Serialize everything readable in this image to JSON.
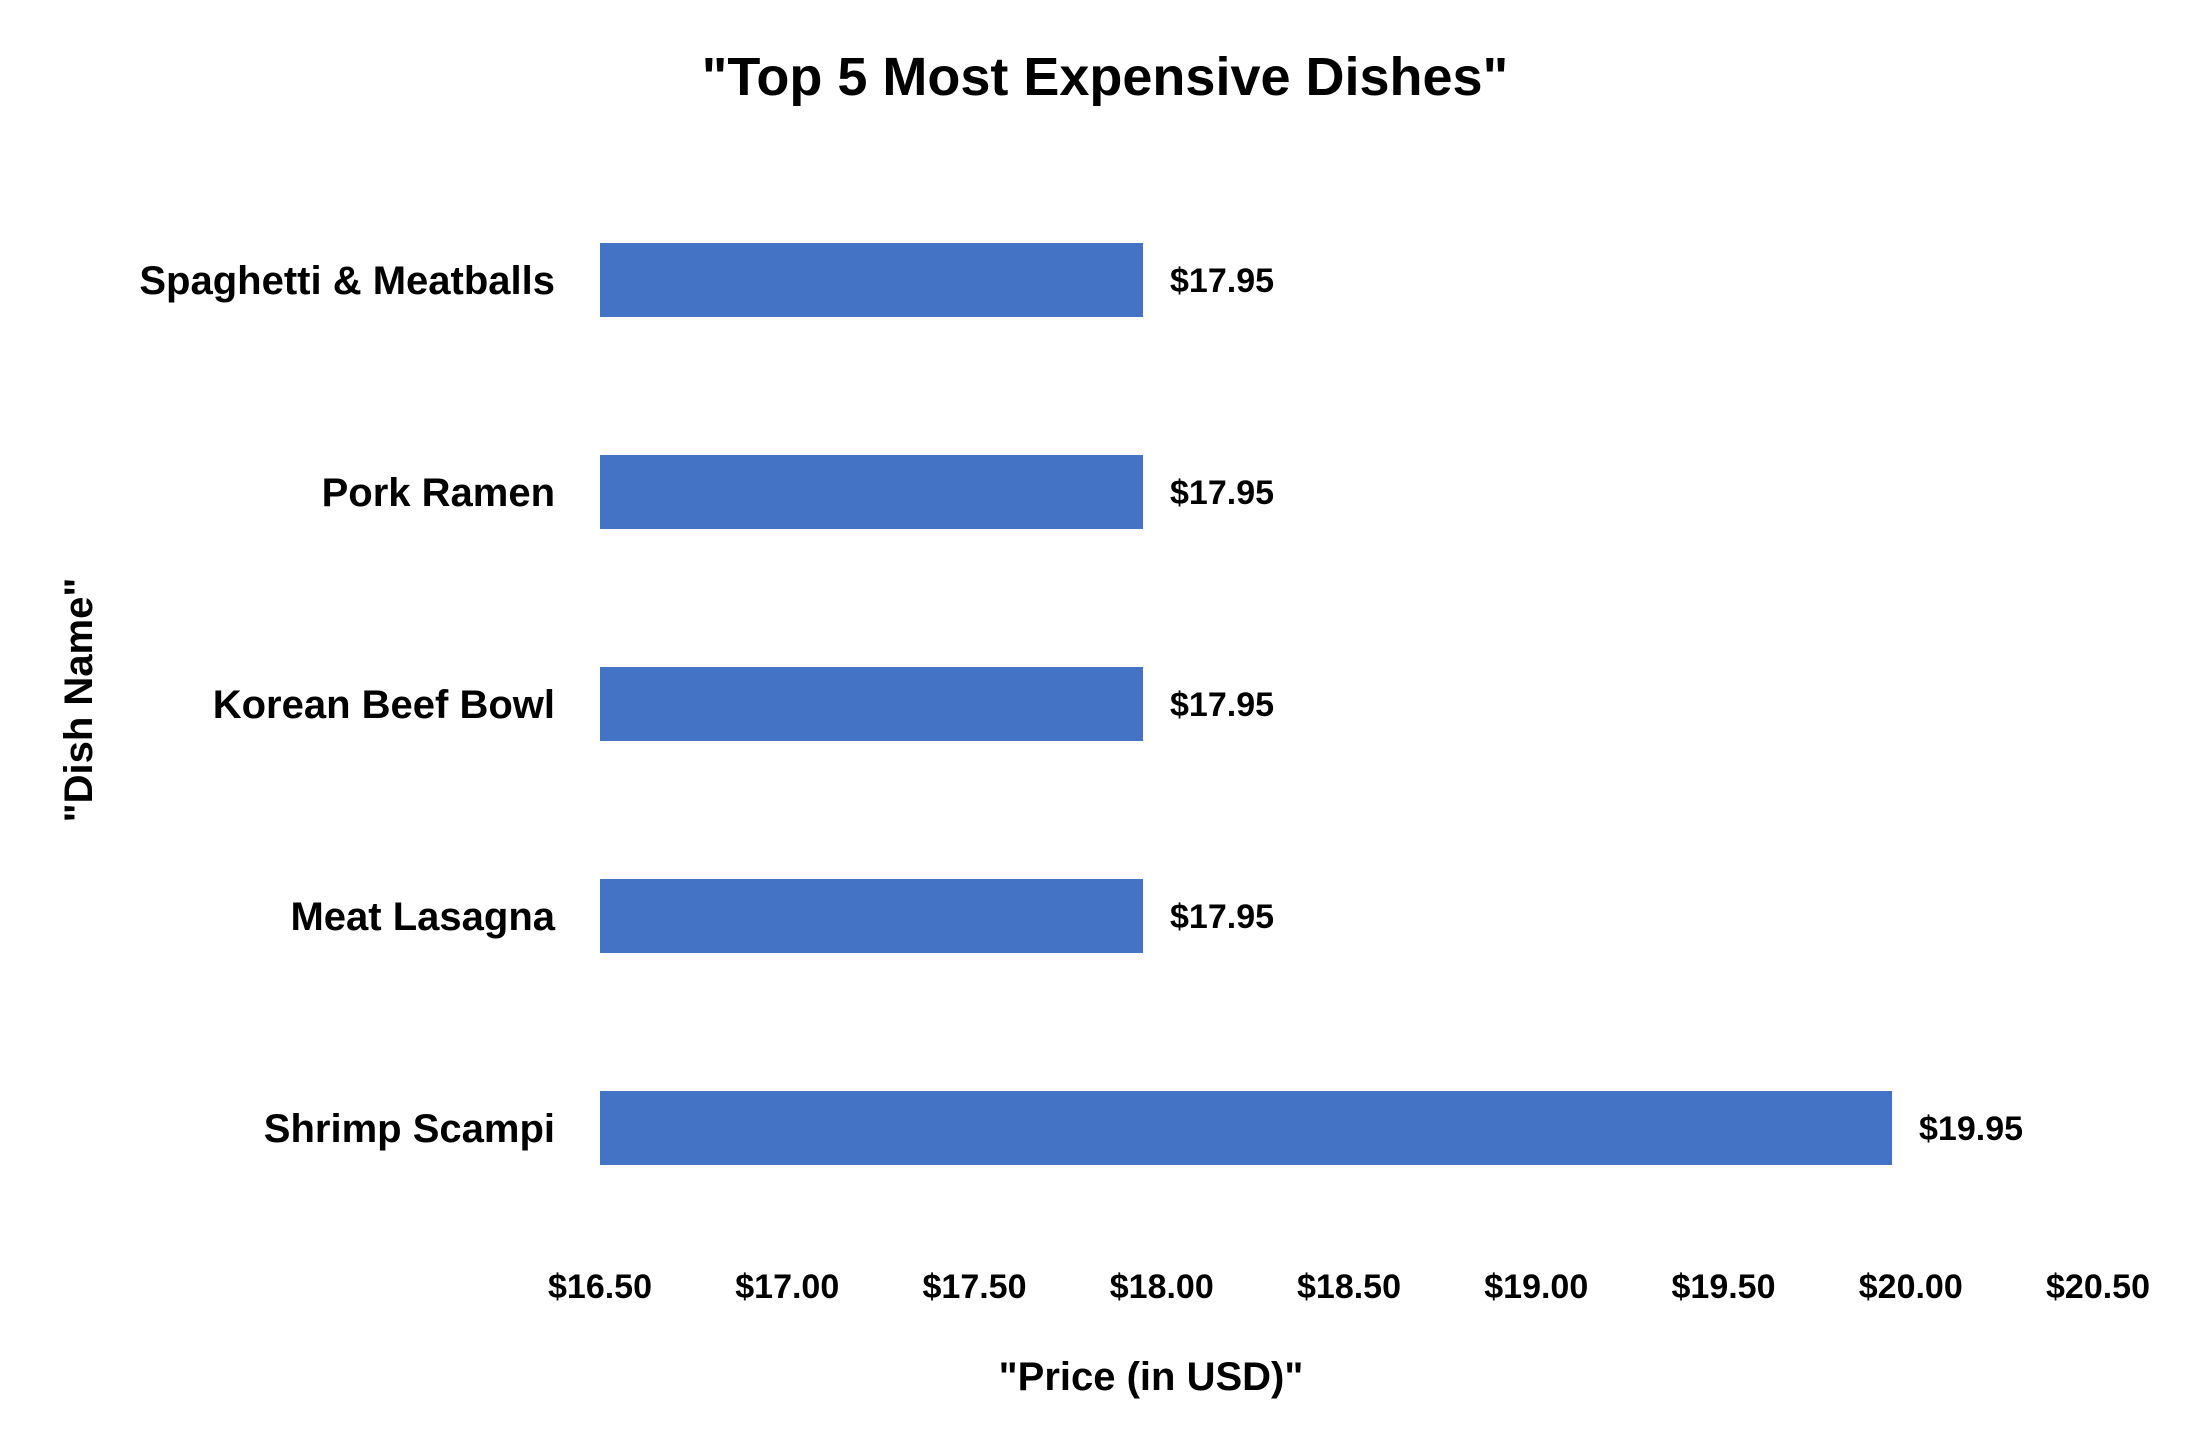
{
  "chart_data": {
    "type": "bar",
    "orientation": "horizontal",
    "title": "\"Top 5 Most Expensive Dishes\"",
    "xlabel": "\"Price (in USD)\"",
    "ylabel": "\"Dish Name\"",
    "categories": [
      "Spaghetti & Meatballs",
      "Pork Ramen",
      "Korean Beef Bowl",
      "Meat Lasagna",
      "Shrimp Scampi"
    ],
    "values": [
      17.95,
      17.95,
      17.95,
      17.95,
      19.95
    ],
    "data_labels": [
      "$17.95",
      "$17.95",
      "$17.95",
      "$17.95",
      "$19.95"
    ],
    "xlim": [
      16.5,
      20.5
    ],
    "x_ticks": [
      16.5,
      17.0,
      17.5,
      18.0,
      18.5,
      19.0,
      19.5,
      20.0,
      20.5
    ],
    "x_tick_labels": [
      "$16.50",
      "$17.00",
      "$17.50",
      "$18.00",
      "$18.50",
      "$19.00",
      "$19.50",
      "$20.00",
      "$20.50"
    ],
    "bar_color": "#4472C4",
    "grid": false,
    "legend": "none"
  }
}
